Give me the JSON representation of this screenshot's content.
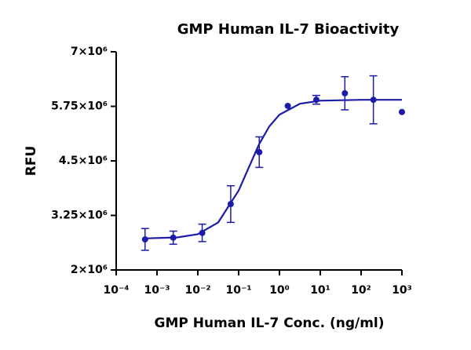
{
  "chart_data": {
    "type": "scatter",
    "title": "GMP Human IL-7 Bioactivity",
    "x_label": "GMP Human IL-7 Conc. (ng/ml)",
    "y_label": "RFU",
    "xscale": "log",
    "color": "#1c1ca8",
    "xlim": [
      0.0001,
      1000
    ],
    "xticks": [
      {
        "value": 0.0001,
        "label": "10⁻⁴"
      },
      {
        "value": 0.001,
        "label": "10⁻³"
      },
      {
        "value": 0.01,
        "label": "10⁻²"
      },
      {
        "value": 0.1,
        "label": "10⁻¹"
      },
      {
        "value": 1,
        "label": "10⁰"
      },
      {
        "value": 10,
        "label": "10¹"
      },
      {
        "value": 100,
        "label": "10²"
      },
      {
        "value": 1000,
        "label": "10³"
      }
    ],
    "ylim": [
      2000000,
      7000000
    ],
    "yticks": [
      {
        "value": 2000000,
        "label": "2×10⁶"
      },
      {
        "value": 3250000,
        "label": "3.25×10⁶"
      },
      {
        "value": 4500000,
        "label": "4.5×10⁶"
      },
      {
        "value": 5750000,
        "label": "5.75×10⁶"
      },
      {
        "value": 7000000,
        "label": "7×10⁶"
      }
    ],
    "points": {
      "x": [
        0.00051,
        0.0025,
        0.0128,
        0.064,
        0.32,
        1.6,
        8,
        40,
        200,
        1000
      ],
      "values": [
        2700000,
        2740000,
        2850000,
        3510000,
        4700000,
        5760000,
        5900000,
        6050000,
        5900000,
        5620000
      ],
      "errors": [
        250000,
        150000,
        200000,
        420000,
        350000,
        null,
        100000,
        380000,
        550000,
        null
      ]
    },
    "fit": {
      "x": [
        0.0005,
        0.00316,
        0.01,
        0.0316,
        0.1,
        0.178,
        0.316,
        0.562,
        1,
        3.16,
        10,
        100,
        1000
      ],
      "values": [
        2723000,
        2746000,
        2820000,
        3090000,
        3820000,
        4350000,
        4880000,
        5290000,
        5560000,
        5810000,
        5880000,
        5900000,
        5900000
      ]
    }
  }
}
